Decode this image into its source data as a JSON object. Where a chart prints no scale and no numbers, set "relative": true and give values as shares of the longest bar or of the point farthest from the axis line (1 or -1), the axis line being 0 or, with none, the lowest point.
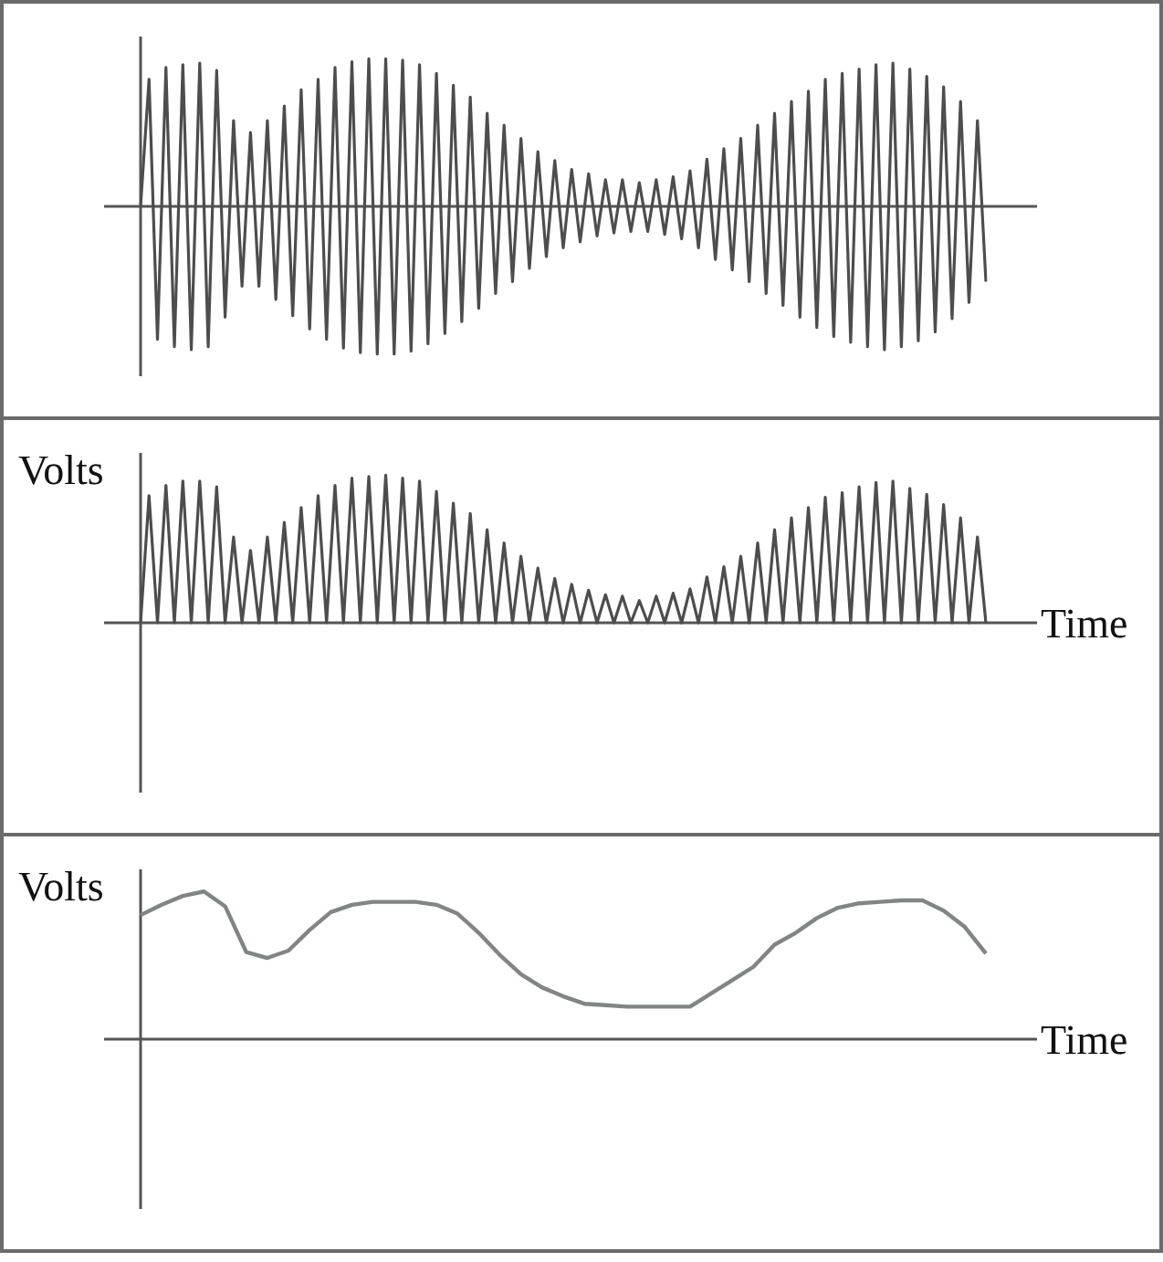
{
  "chart_data": [
    {
      "type": "line",
      "relative": true,
      "categories": [
        null,
        null,
        null,
        null,
        null,
        null,
        null,
        null,
        null,
        null,
        null,
        null,
        null,
        null,
        null,
        null,
        null,
        null,
        null,
        null,
        null,
        null,
        null,
        null,
        null,
        null,
        null,
        null,
        null,
        null,
        null,
        null,
        null,
        null,
        null,
        null,
        null,
        null,
        null,
        null,
        null,
        null,
        null,
        null,
        null,
        null,
        null,
        null,
        null,
        null,
        null,
        null,
        null,
        null,
        null,
        null,
        null,
        null,
        null,
        null,
        null,
        null,
        null,
        null,
        null,
        null,
        null,
        null,
        null,
        null,
        null,
        null,
        null,
        null,
        null,
        null,
        null,
        null,
        null,
        null,
        null,
        null,
        null,
        null,
        null,
        null,
        null,
        null,
        null,
        null,
        null,
        null,
        null,
        null,
        null,
        null,
        null,
        null,
        null,
        null,
        null
      ],
      "series": [
        {
          "color": "#4d4d4d",
          "values": [
            0,
            0.86,
            -0.9,
            0.94,
            -0.95,
            0.96,
            -0.97,
            0.97,
            -0.95,
            0.92,
            -0.75,
            0.58,
            -0.54,
            0.5,
            -0.54,
            0.58,
            -0.63,
            0.68,
            -0.74,
            0.79,
            -0.83,
            0.86,
            -0.9,
            0.94,
            -0.96,
            0.98,
            -0.99,
            1,
            -1,
            1,
            -1,
            0.99,
            -0.98,
            0.96,
            -0.93,
            0.9,
            -0.86,
            0.82,
            -0.78,
            0.74,
            -0.69,
            0.63,
            -0.59,
            0.55,
            -0.51,
            0.46,
            -0.42,
            0.37,
            -0.34,
            0.31,
            -0.28,
            0.25,
            -0.24,
            0.22,
            -0.2,
            0.18,
            -0.18,
            0.18,
            -0.17,
            0.16,
            -0.17,
            0.18,
            -0.19,
            0.2,
            -0.22,
            0.24,
            -0.28,
            0.32,
            -0.36,
            0.39,
            -0.43,
            0.46,
            -0.51,
            0.55,
            -0.59,
            0.63,
            -0.67,
            0.71,
            -0.75,
            0.78,
            -0.82,
            0.86,
            -0.88,
            0.9,
            -0.92,
            0.93,
            -0.95,
            0.96,
            -0.97,
            0.97,
            -0.95,
            0.93,
            -0.91,
            0.88,
            -0.85,
            0.81,
            -0.76,
            0.71,
            -0.65,
            0.58,
            -0.51
          ]
        }
      ]
    },
    {
      "type": "line",
      "relative": true,
      "xlabel": "Time",
      "ylabel": "Volts",
      "categories": [
        null,
        null,
        null,
        null,
        null,
        null,
        null,
        null,
        null,
        null,
        null,
        null,
        null,
        null,
        null,
        null,
        null,
        null,
        null,
        null,
        null,
        null,
        null,
        null,
        null,
        null,
        null,
        null,
        null,
        null,
        null,
        null,
        null,
        null,
        null,
        null,
        null,
        null,
        null,
        null,
        null,
        null,
        null,
        null,
        null,
        null,
        null,
        null,
        null,
        null,
        null,
        null,
        null,
        null,
        null,
        null,
        null,
        null,
        null,
        null,
        null,
        null,
        null,
        null,
        null,
        null,
        null,
        null,
        null,
        null,
        null,
        null,
        null,
        null,
        null,
        null,
        null,
        null,
        null,
        null,
        null,
        null,
        null,
        null,
        null,
        null,
        null,
        null,
        null,
        null,
        null,
        null,
        null,
        null,
        null,
        null,
        null,
        null,
        null,
        null,
        null
      ],
      "series": [
        {
          "color": "#4d4d4d",
          "values": [
            0,
            0.86,
            0,
            0.93,
            0,
            0.96,
            0,
            0.96,
            0,
            0.92,
            0,
            0.58,
            0,
            0.49,
            0,
            0.58,
            0,
            0.68,
            0,
            0.78,
            0,
            0.86,
            0,
            0.93,
            0,
            0.98,
            0,
            0.99,
            0,
            1,
            0,
            0.98,
            0,
            0.96,
            0,
            0.89,
            0,
            0.81,
            0,
            0.74,
            0,
            0.63,
            0,
            0.54,
            0,
            0.45,
            0,
            0.37,
            0,
            0.3,
            0,
            0.26,
            0,
            0.22,
            0,
            0.19,
            0,
            0.18,
            0,
            0.15,
            0,
            0.18,
            0,
            0.2,
            0,
            0.23,
            0,
            0.31,
            0,
            0.38,
            0,
            0.45,
            0,
            0.54,
            0,
            0.63,
            0,
            0.71,
            0,
            0.78,
            0,
            0.85,
            0,
            0.88,
            0,
            0.92,
            0,
            0.95,
            0,
            0.96,
            0,
            0.91,
            0,
            0.87,
            0,
            0.8,
            0,
            0.71,
            0,
            0.58,
            0
          ]
        }
      ]
    },
    {
      "type": "line",
      "relative": true,
      "xlabel": "Time",
      "ylabel": "Volts",
      "categories": [
        null,
        null,
        null,
        null,
        null,
        null,
        null,
        null,
        null,
        null,
        null,
        null,
        null,
        null,
        null,
        null,
        null,
        null,
        null,
        null,
        null,
        null,
        null,
        null,
        null,
        null,
        null,
        null,
        null,
        null,
        null,
        null,
        null,
        null,
        null,
        null,
        null,
        null,
        null,
        null,
        null
      ],
      "series": [
        {
          "color": "#7f8685",
          "values": [
            0.84,
            0.91,
            0.97,
            1,
            0.9,
            0.59,
            0.55,
            0.6,
            0.74,
            0.86,
            0.91,
            0.93,
            0.93,
            0.93,
            0.91,
            0.85,
            0.72,
            0.57,
            0.44,
            0.35,
            0.29,
            0.24,
            0.23,
            0.22,
            0.22,
            0.22,
            0.22,
            0.31,
            0.4,
            0.49,
            0.64,
            0.72,
            0.82,
            0.89,
            0.92,
            0.93,
            0.94,
            0.94,
            0.87,
            0.76,
            0.58
          ]
        }
      ]
    }
  ]
}
